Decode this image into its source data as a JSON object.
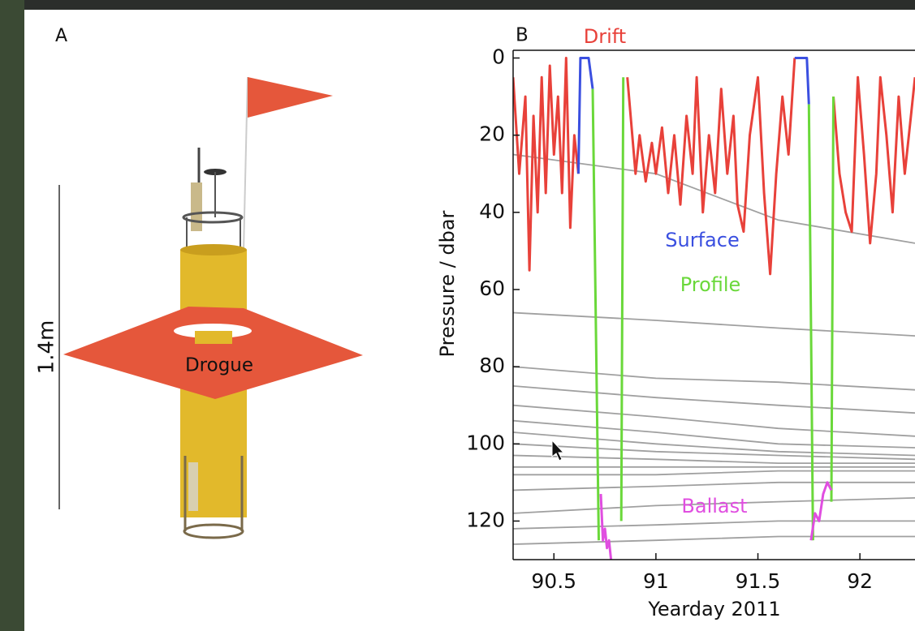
{
  "panel_a": {
    "label": "A",
    "scale_label": "1.4m",
    "drogue_label": "Drogue"
  },
  "chart_data": {
    "type": "line",
    "panel_label": "B",
    "x_label": "Yearday 2011",
    "y_label": "Pressure / dbar",
    "xlim": [
      90.3,
      92.27
    ],
    "ylim": [
      -2,
      130
    ],
    "y_reversed": true,
    "xticks": [
      90.5,
      91,
      91.5,
      92
    ],
    "yticks": [
      0,
      20,
      40,
      60,
      80,
      100,
      120
    ],
    "series": [
      {
        "color": "#a0a0a0",
        "x": [
          90.3,
          91.0,
          91.6,
          92.27
        ],
        "values": [
          25,
          30,
          42,
          48
        ]
      },
      {
        "color": "#a0a0a0",
        "x": [
          90.3,
          91.0,
          91.6,
          92.27
        ],
        "values": [
          66,
          68,
          70,
          72
        ]
      },
      {
        "color": "#a0a0a0",
        "x": [
          90.3,
          91.0,
          91.6,
          92.27
        ],
        "values": [
          80,
          83,
          84,
          86
        ]
      },
      {
        "color": "#a0a0a0",
        "x": [
          90.3,
          91.0,
          91.6,
          92.27
        ],
        "values": [
          85,
          88,
          90,
          92
        ]
      },
      {
        "color": "#a0a0a0",
        "x": [
          90.3,
          91.0,
          91.6,
          92.27
        ],
        "values": [
          90,
          93,
          96,
          98
        ]
      },
      {
        "color": "#a0a0a0",
        "x": [
          90.3,
          91.0,
          91.6,
          92.27
        ],
        "values": [
          94,
          97,
          100,
          101
        ]
      },
      {
        "color": "#a0a0a0",
        "x": [
          90.3,
          91.0,
          91.6,
          92.27
        ],
        "values": [
          97,
          100,
          102,
          103
        ]
      },
      {
        "color": "#a0a0a0",
        "x": [
          90.3,
          91.0,
          91.6,
          92.27
        ],
        "values": [
          100,
          102,
          103,
          104
        ]
      },
      {
        "color": "#a0a0a0",
        "x": [
          90.3,
          91.0,
          91.6,
          92.27
        ],
        "values": [
          103,
          104,
          105,
          105
        ]
      },
      {
        "color": "#a0a0a0",
        "x": [
          90.3,
          91.0,
          91.6,
          92.27
        ],
        "values": [
          106,
          106,
          106,
          106
        ]
      },
      {
        "color": "#a0a0a0",
        "x": [
          90.3,
          91.0,
          91.6,
          92.27
        ],
        "values": [
          108,
          108,
          107,
          107
        ]
      },
      {
        "color": "#a0a0a0",
        "x": [
          90.3,
          91.0,
          91.6,
          92.27
        ],
        "values": [
          112,
          111,
          110,
          110
        ]
      },
      {
        "color": "#a0a0a0",
        "x": [
          90.3,
          91.0,
          91.6,
          92.27
        ],
        "values": [
          118,
          116,
          115,
          114
        ]
      },
      {
        "color": "#a0a0a0",
        "x": [
          90.3,
          91.0,
          91.6,
          92.27
        ],
        "values": [
          122,
          121,
          120,
          120
        ]
      },
      {
        "color": "#a0a0a0",
        "x": [
          90.3,
          91.0,
          91.6,
          92.27
        ],
        "values": [
          126,
          125,
          124,
          124
        ]
      },
      {
        "name": "Drift",
        "color": "#e8413a",
        "x": [
          90.3,
          90.33,
          90.36,
          90.38,
          90.4,
          90.42,
          90.44,
          90.46,
          90.48,
          90.5,
          90.52,
          90.54,
          90.56,
          90.58,
          90.6,
          90.62,
          90.64,
          90.86,
          90.9,
          90.92,
          90.95,
          90.98,
          91.0,
          91.03,
          91.06,
          91.09,
          91.12,
          91.15,
          91.18,
          91.2,
          91.23,
          91.26,
          91.29,
          91.32,
          91.35,
          91.38,
          91.4,
          91.43,
          91.46,
          91.5,
          91.53,
          91.56,
          91.59,
          91.62,
          91.65,
          91.68,
          91.7,
          91.87,
          91.9,
          91.93,
          91.96,
          91.99,
          92.02,
          92.05,
          92.08,
          92.1,
          92.13,
          92.16,
          92.19,
          92.22,
          92.25,
          92.27
        ],
        "values": [
          5,
          30,
          10,
          55,
          15,
          40,
          5,
          35,
          2,
          25,
          10,
          35,
          0,
          44,
          20,
          30,
          null,
          5,
          30,
          20,
          32,
          22,
          30,
          18,
          35,
          20,
          38,
          15,
          30,
          5,
          40,
          20,
          35,
          8,
          30,
          15,
          38,
          45,
          20,
          5,
          35,
          56,
          30,
          10,
          25,
          0,
          null,
          10,
          30,
          40,
          45,
          5,
          25,
          48,
          30,
          5,
          20,
          40,
          10,
          30,
          15,
          5
        ]
      },
      {
        "name": "Surface",
        "color": "#3a4fe0",
        "x": [
          90.62,
          90.63,
          90.67,
          90.69,
          90.9,
          91.68,
          91.7,
          91.74,
          91.75
        ],
        "values": [
          30,
          0,
          0,
          8,
          null,
          0,
          0,
          0,
          12
        ]
      },
      {
        "name": "Profile",
        "color": "#6ad83a",
        "x": [
          90.69,
          90.72,
          90.8,
          90.84,
          90.83,
          91.3,
          91.75,
          91.77,
          91.8,
          91.87,
          91.86
        ],
        "values": [
          8,
          125,
          null,
          5,
          120,
          null,
          12,
          125,
          null,
          10,
          115
        ]
      },
      {
        "name": "Ballast",
        "color": "#e04ee0",
        "x": [
          90.73,
          90.74,
          90.75,
          90.76,
          90.77,
          90.78,
          91.3,
          91.76,
          91.78,
          91.8,
          91.82,
          91.84,
          91.86
        ],
        "values": [
          113,
          125,
          122,
          127,
          125,
          130,
          null,
          125,
          118,
          120,
          113,
          110,
          112
        ]
      }
    ]
  }
}
